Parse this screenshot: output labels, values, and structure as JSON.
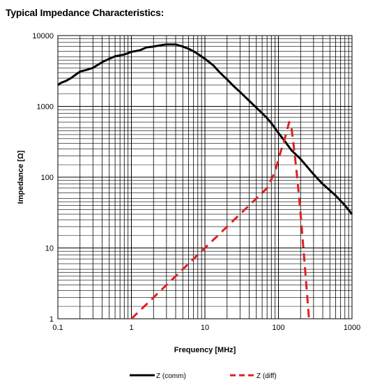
{
  "chart_data": {
    "type": "line",
    "title": "Typical Impedance Characteristics:",
    "xlabel": "Frequency [MHz]",
    "ylabel": "Impedance [Ω]",
    "xscale": "log",
    "yscale": "log",
    "xlim": [
      0.1,
      1000
    ],
    "ylim": [
      1,
      10000
    ],
    "x_tick_labels": [
      "0.1",
      "1",
      "10",
      "100",
      "1000"
    ],
    "y_tick_labels": [
      "1",
      "10",
      "100",
      "1000",
      "10000"
    ],
    "grid": true,
    "legend_position": "bottom",
    "series": [
      {
        "name": "Z (comm)",
        "color": "#000000",
        "style": "solid",
        "x": [
          0.1,
          0.11,
          0.13,
          0.15,
          0.2,
          0.25,
          0.3,
          0.4,
          0.5,
          0.6,
          0.8,
          1,
          1.3,
          1.6,
          2,
          2.5,
          3,
          3.5,
          4,
          5,
          6,
          7,
          8,
          10,
          13,
          16,
          20,
          25,
          30,
          40,
          50,
          60,
          70,
          80,
          100,
          120,
          150,
          200,
          300,
          400,
          600,
          800,
          1000
        ],
        "y": [
          2000,
          2150,
          2300,
          2500,
          3100,
          3300,
          3500,
          4200,
          4700,
          5100,
          5400,
          5900,
          6200,
          6800,
          7000,
          7300,
          7500,
          7500,
          7500,
          7000,
          6500,
          6000,
          5500,
          4700,
          3800,
          3000,
          2400,
          1900,
          1600,
          1200,
          960,
          800,
          680,
          580,
          420,
          330,
          240,
          180,
          110,
          80,
          55,
          40,
          30
        ]
      },
      {
        "name": "Z (diff)",
        "color": "#e02020",
        "style": "dashed",
        "x": [
          1,
          1.4,
          2,
          3,
          5,
          7,
          10,
          15,
          20,
          30,
          50,
          70,
          90,
          100,
          110,
          120,
          130,
          140,
          150,
          160,
          180,
          200,
          230,
          260
        ],
        "y": [
          1,
          1.4,
          2,
          3,
          5,
          7,
          10,
          15,
          20,
          30,
          50,
          70,
          120,
          180,
          250,
          330,
          450,
          600,
          500,
          300,
          100,
          30,
          5,
          1
        ]
      }
    ]
  }
}
